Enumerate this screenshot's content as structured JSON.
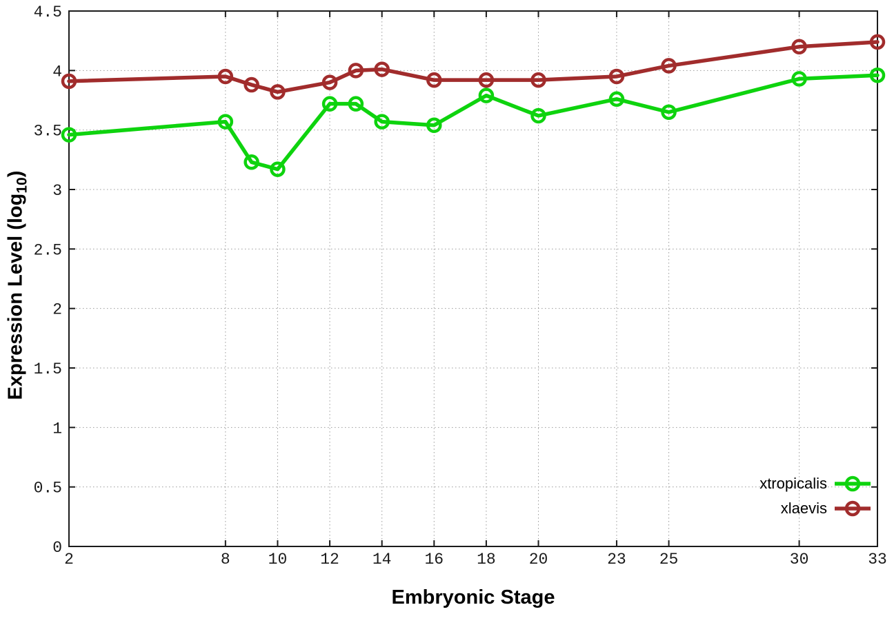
{
  "colors": {
    "background": "#ffffff",
    "axis": "#1a1a1a",
    "grid": "#9a9a9a",
    "tick_text": "#1a1a1a"
  },
  "chart_data": {
    "type": "line",
    "title": "",
    "xlabel": "Embryonic Stage",
    "ylabel": "Expression Level (log10)",
    "ylabel_parts": {
      "main": "Expression Level (log",
      "sub": "10",
      "close": ")"
    },
    "xlim": [
      2,
      33
    ],
    "ylim": [
      0,
      4.5
    ],
    "grid": true,
    "legend_position": "inside-bottom-right",
    "marker": "open-circle",
    "x": [
      2,
      8,
      9,
      10,
      12,
      13,
      14,
      16,
      18,
      20,
      23,
      25,
      30,
      33
    ],
    "xtick_values": [
      2,
      8,
      10,
      12,
      14,
      16,
      18,
      20,
      23,
      25,
      30,
      33
    ],
    "xtick_labels": [
      "2",
      "8",
      "10",
      "12",
      "14",
      "16",
      "18",
      "20",
      "23",
      "25",
      "30",
      "33"
    ],
    "ytick_values": [
      0,
      0.5,
      1,
      1.5,
      2,
      2.5,
      3,
      3.5,
      4,
      4.5
    ],
    "ytick_labels": [
      "0",
      "0.5",
      "1",
      "1.5",
      "2",
      "2.5",
      "3",
      "3.5",
      "4",
      "4.5"
    ],
    "series": [
      {
        "name": "xtropicalis",
        "color": "#0ed30e",
        "values": [
          3.46,
          3.57,
          3.23,
          3.17,
          3.72,
          3.72,
          3.57,
          3.54,
          3.79,
          3.62,
          3.76,
          3.65,
          3.93,
          3.96
        ]
      },
      {
        "name": "xlaevis",
        "color": "#a12c2c",
        "values": [
          3.91,
          3.95,
          3.88,
          3.82,
          3.9,
          4.0,
          4.01,
          3.92,
          3.92,
          3.92,
          3.95,
          4.04,
          4.2,
          4.24
        ]
      }
    ]
  }
}
